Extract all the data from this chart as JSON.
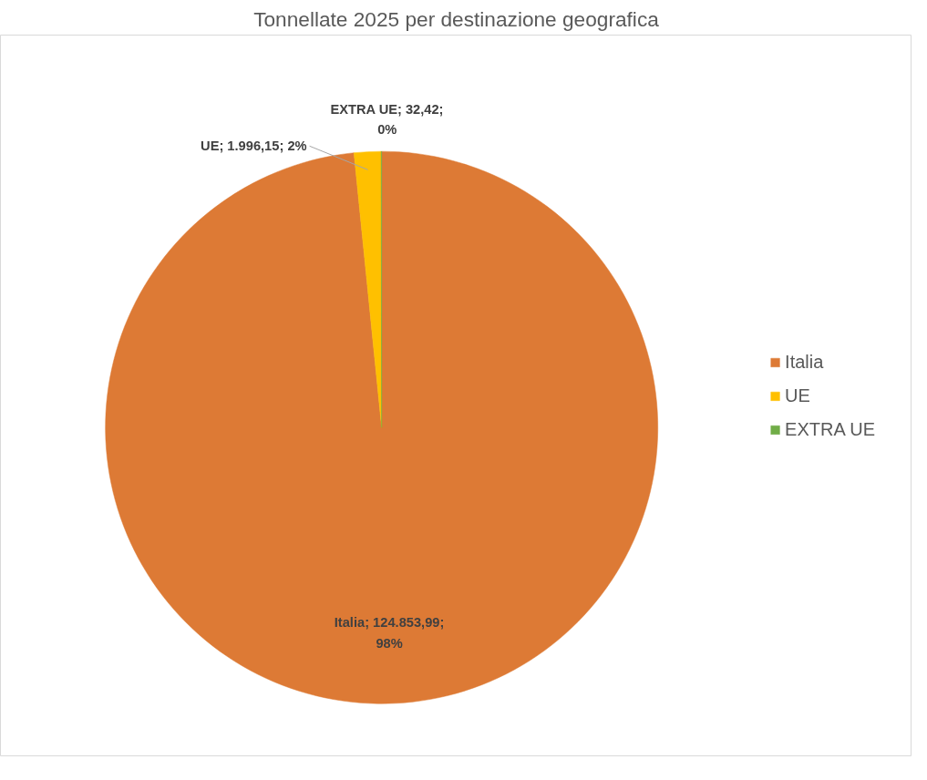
{
  "chart_data": {
    "type": "pie",
    "title": "Tonnellate 2025 per destinazione geografica",
    "categories": [
      "Italia",
      "UE",
      "EXTRA UE"
    ],
    "values": [
      124853.99,
      1996.15,
      32.42
    ],
    "colors": [
      "#dd7a35",
      "#ffc000",
      "#70ad47"
    ],
    "value_labels": [
      "Italia; 124.853,99; 98%",
      "UE; 1.996,15; 2%",
      "EXTRA UE; 32,42; 0%"
    ],
    "legend": "right"
  }
}
